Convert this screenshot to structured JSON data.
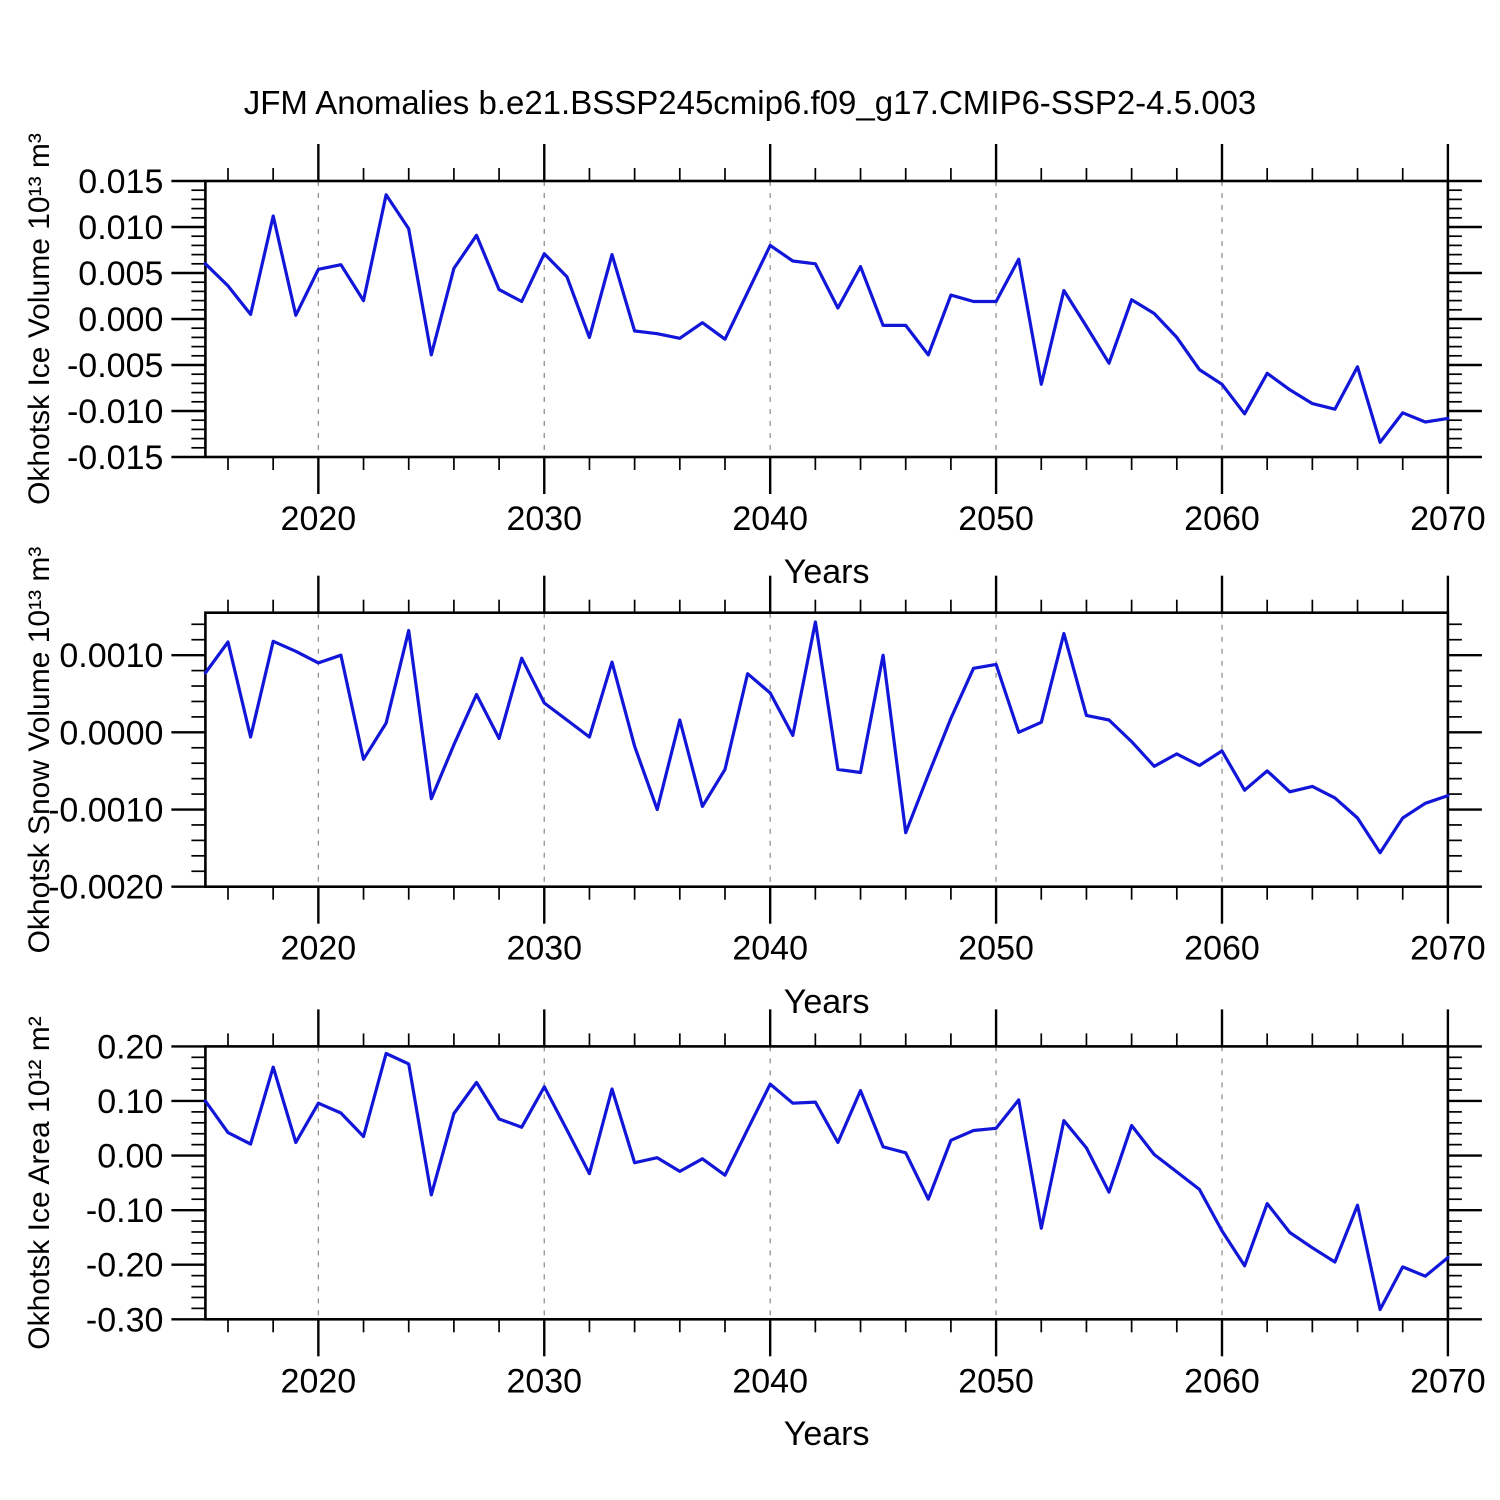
{
  "title": "JFM Anomalies b.e21.BSSP245cmip6.f09_g17.CMIP6-SSP2-4.5.003",
  "chart_data": [
    {
      "type": "line",
      "title": "JFM Anomalies b.e21.BSSP245cmip6.f09_g17.CMIP6-SSP2-4.5.003",
      "xlabel": "Years",
      "ylabel": "Okhotsk Ice Volume 10¹³ m³",
      "x_range": [
        2015,
        2070
      ],
      "ylim": [
        -0.015,
        0.015
      ],
      "yticks": [
        0.015,
        0.01,
        0.005,
        0.0,
        -0.005,
        -0.01,
        -0.015
      ],
      "ytick_labels": [
        "0.015",
        "0.010",
        "0.005",
        "0.000",
        "-0.005",
        "-0.010",
        "-0.015"
      ],
      "y_minor_step": 0.001,
      "xticks": [
        2020,
        2030,
        2040,
        2050,
        2060,
        2070
      ],
      "xtick_labels": [
        "2020",
        "2030",
        "2040",
        "2050",
        "2060",
        "2070"
      ],
      "x_minor_step": 2,
      "grid_x_dashed": [
        2020,
        2030,
        2040,
        2050,
        2060
      ],
      "grid": "vertical-dashed",
      "legend": "none",
      "line_color": "#1216d8",
      "x": [
        2015,
        2016,
        2017,
        2018,
        2019,
        2020,
        2021,
        2022,
        2023,
        2024,
        2025,
        2026,
        2027,
        2028,
        2029,
        2030,
        2031,
        2032,
        2033,
        2034,
        2035,
        2036,
        2037,
        2038,
        2039,
        2040,
        2041,
        2042,
        2043,
        2044,
        2045,
        2046,
        2047,
        2048,
        2049,
        2050,
        2051,
        2052,
        2053,
        2054,
        2055,
        2056,
        2057,
        2058,
        2059,
        2060,
        2061,
        2062,
        2063,
        2064,
        2065,
        2066,
        2067,
        2068,
        2069,
        2070
      ],
      "series": [
        {
          "name": "Okhotsk Ice Volume anomaly",
          "values": [
            0.006,
            0.0036,
            0.0005,
            0.0112,
            0.0004,
            0.0054,
            0.0059,
            0.002,
            0.0135,
            0.0098,
            -0.0039,
            0.0055,
            0.0091,
            0.0032,
            0.0019,
            0.0071,
            0.0046,
            -0.002,
            0.007,
            -0.0013,
            -0.0016,
            -0.0021,
            -0.0004,
            -0.0022,
            0.0029,
            0.008,
            0.0063,
            0.006,
            0.0012,
            0.0057,
            -0.0007,
            -0.0007,
            -0.0039,
            0.0026,
            0.0019,
            0.0019,
            0.0065,
            -0.0071,
            0.0031,
            -0.0008,
            -0.0048,
            0.0021,
            0.0006,
            -0.002,
            -0.0055,
            -0.0071,
            -0.0103,
            -0.0059,
            -0.0077,
            -0.0092,
            -0.0098,
            -0.0052,
            -0.0134,
            -0.0102,
            -0.0112,
            -0.0108
          ]
        }
      ]
    },
    {
      "type": "line",
      "xlabel": "Years",
      "ylabel": "Okhotsk Snow Volume 10¹³ m³",
      "x_range": [
        2015,
        2070
      ],
      "ylim": [
        -0.002,
        0.00155
      ],
      "yticks": [
        0.001,
        0.0,
        -0.001,
        -0.002
      ],
      "ytick_labels": [
        "0.0010",
        "0.0000",
        "-0.0010",
        "-0.0020"
      ],
      "y_minor_step": 0.0002,
      "xticks": [
        2020,
        2030,
        2040,
        2050,
        2060,
        2070
      ],
      "xtick_labels": [
        "2020",
        "2030",
        "2040",
        "2050",
        "2060",
        "2070"
      ],
      "x_minor_step": 2,
      "grid_x_dashed": [
        2020,
        2030,
        2040,
        2050,
        2060
      ],
      "grid": "vertical-dashed",
      "legend": "none",
      "line_color": "#1216d8",
      "x": [
        2015,
        2016,
        2017,
        2018,
        2019,
        2020,
        2021,
        2022,
        2023,
        2024,
        2025,
        2026,
        2027,
        2028,
        2029,
        2030,
        2031,
        2032,
        2033,
        2034,
        2035,
        2036,
        2037,
        2038,
        2039,
        2040,
        2041,
        2042,
        2043,
        2044,
        2045,
        2046,
        2047,
        2048,
        2049,
        2050,
        2051,
        2052,
        2053,
        2054,
        2055,
        2056,
        2057,
        2058,
        2059,
        2060,
        2061,
        2062,
        2063,
        2064,
        2065,
        2066,
        2067,
        2068,
        2069,
        2070
      ],
      "series": [
        {
          "name": "Okhotsk Snow Volume anomaly",
          "values": [
            0.00077,
            0.00117,
            -6e-05,
            0.00118,
            0.00105,
            0.0009,
            0.001,
            -0.00035,
            0.00012,
            0.00132,
            -0.00086,
            -0.00016,
            0.00049,
            -8e-05,
            0.00096,
            0.00038,
            0.00016,
            -6e-05,
            0.00091,
            -0.00018,
            -0.001,
            0.00016,
            -0.00096,
            -0.00048,
            0.00076,
            0.00051,
            -4e-05,
            0.00143,
            -0.00048,
            -0.00052,
            0.001,
            -0.0013,
            -0.00055,
            0.00018,
            0.00083,
            0.00088,
            0.0,
            0.00013,
            0.00128,
            0.00022,
            0.00016,
            -0.00012,
            -0.00044,
            -0.00028,
            -0.00043,
            -0.00024,
            -0.00075,
            -0.0005,
            -0.00077,
            -0.0007,
            -0.00085,
            -0.00111,
            -0.00156,
            -0.00111,
            -0.00092,
            -0.00082
          ]
        }
      ]
    },
    {
      "type": "line",
      "xlabel": "Years",
      "ylabel": "Okhotsk Ice Area 10¹² m²",
      "x_range": [
        2015,
        2070
      ],
      "ylim": [
        -0.3,
        0.2
      ],
      "yticks": [
        0.2,
        0.1,
        0.0,
        -0.1,
        -0.2,
        -0.3
      ],
      "ytick_labels": [
        "0.20",
        "0.10",
        "0.00",
        "-0.10",
        "-0.20",
        "-0.30"
      ],
      "y_minor_step": 0.02,
      "xticks": [
        2020,
        2030,
        2040,
        2050,
        2060,
        2070
      ],
      "xtick_labels": [
        "2020",
        "2030",
        "2040",
        "2050",
        "2060",
        "2070"
      ],
      "x_minor_step": 2,
      "grid_x_dashed": [
        2020,
        2030,
        2040,
        2050,
        2060
      ],
      "grid": "vertical-dashed",
      "legend": "none",
      "line_color": "#1216d8",
      "x": [
        2015,
        2016,
        2017,
        2018,
        2019,
        2020,
        2021,
        2022,
        2023,
        2024,
        2025,
        2026,
        2027,
        2028,
        2029,
        2030,
        2031,
        2032,
        2033,
        2034,
        2035,
        2036,
        2037,
        2038,
        2039,
        2040,
        2041,
        2042,
        2043,
        2044,
        2045,
        2046,
        2047,
        2048,
        2049,
        2050,
        2051,
        2052,
        2053,
        2054,
        2055,
        2056,
        2057,
        2058,
        2059,
        2060,
        2061,
        2062,
        2063,
        2064,
        2065,
        2066,
        2067,
        2068,
        2069,
        2070
      ],
      "series": [
        {
          "name": "Okhotsk Ice Area anomaly",
          "values": [
            0.1,
            0.042,
            0.021,
            0.162,
            0.024,
            0.096,
            0.078,
            0.035,
            0.187,
            0.168,
            -0.072,
            0.077,
            0.134,
            0.067,
            0.052,
            0.126,
            0.047,
            -0.033,
            0.122,
            -0.013,
            -0.004,
            -0.029,
            -0.006,
            -0.036,
            0.048,
            0.131,
            0.096,
            0.098,
            0.024,
            0.119,
            0.016,
            0.005,
            -0.08,
            0.028,
            0.046,
            0.05,
            0.102,
            -0.133,
            0.064,
            0.014,
            -0.067,
            0.055,
            0.002,
            -0.03,
            -0.062,
            -0.138,
            -0.202,
            -0.088,
            -0.141,
            -0.169,
            -0.195,
            -0.091,
            -0.282,
            -0.204,
            -0.221,
            -0.187
          ]
        }
      ]
    }
  ]
}
